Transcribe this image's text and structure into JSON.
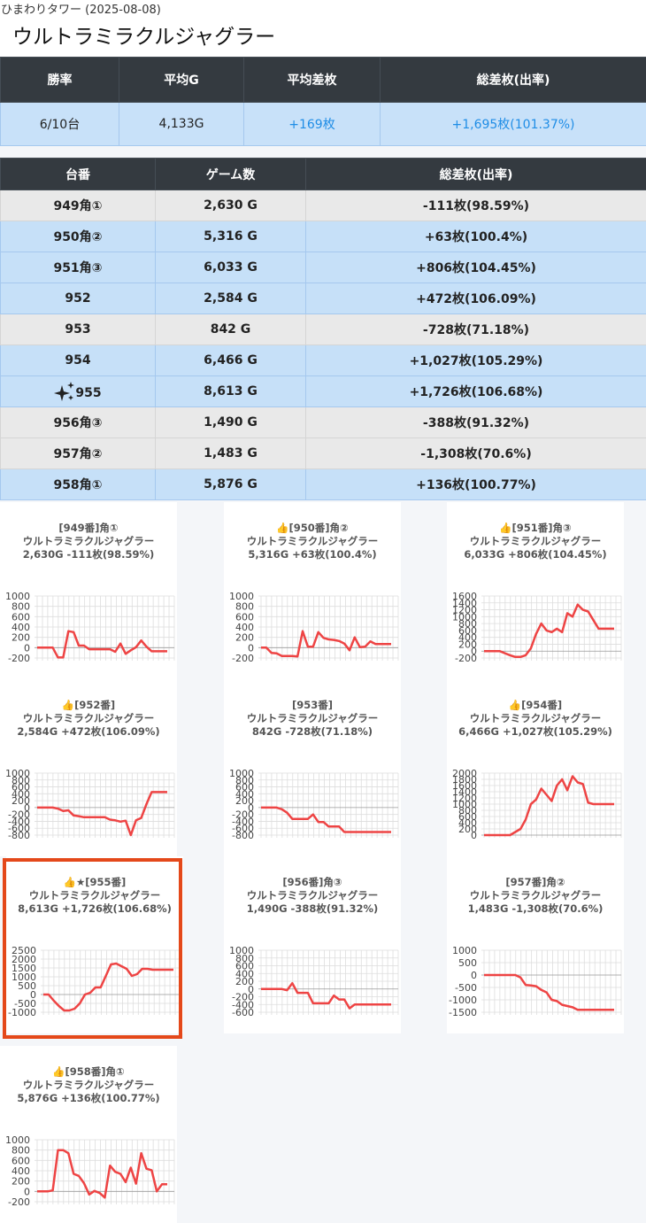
{
  "header": {
    "store_date": "ひまわりタワー (2025-08-08)",
    "title": "ウルトラミラクルジャグラー"
  },
  "summary": {
    "headers": [
      "勝率",
      "平均G",
      "平均差枚",
      "総差枚(出率)"
    ],
    "win_rate": "6/10台",
    "avg_games": "4,133G",
    "avg_diff": "+169枚",
    "total_diff": "+1,695枚(101.37%)"
  },
  "machines": {
    "headers": [
      "台番",
      "ゲーム数",
      "総差枚(出率)"
    ],
    "rows": [
      {
        "id": "949角①",
        "games": "2,630 G",
        "diff": "-111枚(98.59%)",
        "plus": false
      },
      {
        "id": "950角②",
        "games": "5,316 G",
        "diff": "+63枚(100.4%)",
        "plus": true
      },
      {
        "id": "951角③",
        "games": "6,033 G",
        "diff": "+806枚(104.45%)",
        "plus": true
      },
      {
        "id": "952",
        "games": "2,584 G",
        "diff": "+472枚(106.09%)",
        "plus": true
      },
      {
        "id": "953",
        "games": "842 G",
        "diff": "-728枚(71.18%)",
        "plus": false
      },
      {
        "id": "954",
        "games": "6,466 G",
        "diff": "+1,027枚(105.29%)",
        "plus": true
      },
      {
        "id": "955",
        "games": "8,613 G",
        "diff": "+1,726枚(106.68%)",
        "plus": true,
        "sparkle": true
      },
      {
        "id": "956角③",
        "games": "1,490 G",
        "diff": "-388枚(91.32%)",
        "plus": false
      },
      {
        "id": "957角②",
        "games": "1,483 G",
        "diff": "-1,308枚(70.6%)",
        "plus": false
      },
      {
        "id": "958角①",
        "games": "5,876 G",
        "diff": "+136枚(100.77%)",
        "plus": true
      }
    ]
  },
  "chart_data": [
    {
      "type": "line",
      "title_line1": "[949番]角①",
      "title_line2": "ウルトラミラクルジャグラー",
      "title_line3": "2,630G -111枚(98.59%)",
      "yticks": [
        "1000",
        "800",
        "600",
        "400",
        "200",
        "0",
        "-200"
      ],
      "ylim": [
        -200,
        1000
      ],
      "values": [
        0,
        0,
        0,
        0,
        -190,
        -190,
        320,
        300,
        40,
        40,
        -30,
        -30,
        -30,
        -30,
        -30,
        -80,
        80,
        -120,
        -50,
        10,
        140,
        20,
        -70,
        -70,
        -70,
        -70
      ]
    },
    {
      "type": "line",
      "title_line1": "👍[950番]角②",
      "title_line2": "ウルトラミラクルジャグラー",
      "title_line3": "5,316G +63枚(100.4%)",
      "yticks": [
        "1000",
        "800",
        "600",
        "400",
        "200",
        "0",
        "-200"
      ],
      "ylim": [
        -200,
        1000
      ],
      "values": [
        0,
        0,
        -100,
        -110,
        -160,
        -160,
        -160,
        -170,
        320,
        20,
        20,
        300,
        190,
        160,
        150,
        130,
        80,
        -50,
        200,
        10,
        20,
        120,
        70,
        70,
        70,
        70
      ]
    },
    {
      "type": "line",
      "title_line1": "👍[951番]角③",
      "title_line2": "ウルトラミラクルジャグラー",
      "title_line3": "6,033G +806枚(104.45%)",
      "yticks": [
        "1600",
        "1400",
        "1200",
        "1000",
        "800",
        "600",
        "400",
        "200",
        "0",
        "-200"
      ],
      "ylim": [
        -200,
        1600
      ],
      "values": [
        0,
        0,
        0,
        0,
        -60,
        -120,
        -170,
        -170,
        -120,
        80,
        500,
        800,
        600,
        550,
        650,
        550,
        1100,
        1000,
        1350,
        1200,
        1150,
        900,
        650,
        650,
        650,
        650
      ]
    },
    {
      "type": "line",
      "title_line1": "👍[952番]",
      "title_line2": "ウルトラミラクルジャグラー",
      "title_line3": "2,584G +472枚(106.09%)",
      "yticks": [
        "1000",
        "800",
        "600",
        "400",
        "200",
        "0",
        "-200",
        "-400",
        "-600",
        "-800"
      ],
      "ylim": [
        -800,
        1000
      ],
      "values": [
        0,
        0,
        0,
        0,
        -30,
        -100,
        -80,
        -230,
        -250,
        -280,
        -280,
        -280,
        -280,
        -280,
        -350,
        -370,
        -410,
        -380,
        -800,
        -370,
        -300,
        100,
        450,
        450,
        450,
        450
      ]
    },
    {
      "type": "line",
      "title_line1": "[953番]",
      "title_line2": "ウルトラミラクルジャグラー",
      "title_line3": "842G -728枚(71.18%)",
      "yticks": [
        "1000",
        "800",
        "600",
        "400",
        "200",
        "0",
        "-200",
        "-400",
        "-600",
        "-800"
      ],
      "ylim": [
        -800,
        1000
      ],
      "values": [
        0,
        0,
        0,
        0,
        -50,
        -150,
        -330,
        -330,
        -330,
        -330,
        -200,
        -420,
        -420,
        -550,
        -550,
        -550,
        -710,
        -710,
        -710,
        -710,
        -710,
        -710,
        -710,
        -710,
        -710,
        -710
      ]
    },
    {
      "type": "line",
      "title_line1": "👍[954番]",
      "title_line2": "ウルトラミラクルジャグラー",
      "title_line3": "6,466G +1,027枚(105.29%)",
      "yticks": [
        "2000",
        "1800",
        "1600",
        "1400",
        "1200",
        "1000",
        "800",
        "600",
        "400",
        "200",
        "0"
      ],
      "ylim": [
        0,
        2000
      ],
      "values": [
        0,
        0,
        0,
        0,
        0,
        0,
        100,
        200,
        500,
        1000,
        1150,
        1500,
        1300,
        1100,
        1600,
        1800,
        1450,
        1900,
        1700,
        1650,
        1050,
        1000,
        1000,
        1000,
        1000,
        1000
      ]
    },
    {
      "type": "line",
      "title_line1": "👍★[955番]",
      "title_line2": "ウルトラミラクルジャグラー",
      "title_line3": "8,613G +1,726枚(106.68%)",
      "yticks": [
        "2500",
        "2000",
        "1500",
        "1000",
        "500",
        "0",
        "-500",
        "-1000"
      ],
      "ylim": [
        -1000,
        2500
      ],
      "values": [
        0,
        0,
        -350,
        -650,
        -900,
        -900,
        -800,
        -500,
        0,
        100,
        400,
        400,
        1050,
        1700,
        1750,
        1600,
        1450,
        1050,
        1150,
        1450,
        1450,
        1400,
        1400,
        1400,
        1400,
        1400
      ]
    },
    {
      "type": "line",
      "title_line1": "[956番]角③",
      "title_line2": "ウルトラミラクルジャグラー",
      "title_line3": "1,490G -388枚(91.32%)",
      "yticks": [
        "1000",
        "800",
        "600",
        "400",
        "200",
        "0",
        "-200",
        "-400",
        "-600"
      ],
      "ylim": [
        -600,
        1000
      ],
      "values": [
        0,
        0,
        0,
        0,
        0,
        -30,
        150,
        -100,
        -100,
        -100,
        -370,
        -370,
        -370,
        -370,
        -170,
        -270,
        -270,
        -500,
        -400,
        -400,
        -400,
        -400,
        -400,
        -400,
        -400,
        -400
      ]
    },
    {
      "type": "line",
      "title_line1": "[957番]角②",
      "title_line2": "ウルトラミラクルジャグラー",
      "title_line3": "1,483G -1,308枚(70.6%)",
      "yticks": [
        "1000",
        "500",
        "0",
        "-500",
        "-1000",
        "-1500"
      ],
      "ylim": [
        -1500,
        1000
      ],
      "values": [
        0,
        0,
        0,
        0,
        0,
        0,
        0,
        -100,
        -400,
        -420,
        -450,
        -600,
        -700,
        -1000,
        -1050,
        -1200,
        -1250,
        -1300,
        -1400,
        -1400,
        -1400,
        -1400,
        -1400,
        -1400,
        -1400,
        -1400
      ]
    },
    {
      "type": "line",
      "title_line1": "👍[958番]角①",
      "title_line2": "ウルトラミラクルジャグラー",
      "title_line3": "5,876G +136枚(100.77%)",
      "yticks": [
        "1000",
        "800",
        "600",
        "400",
        "200",
        "0",
        "-200"
      ],
      "ylim": [
        -200,
        1000
      ],
      "values": [
        0,
        0,
        0,
        20,
        800,
        800,
        740,
        340,
        300,
        160,
        -60,
        10,
        -30,
        -120,
        500,
        380,
        340,
        180,
        460,
        150,
        740,
        440,
        410,
        0,
        140,
        140
      ]
    }
  ]
}
